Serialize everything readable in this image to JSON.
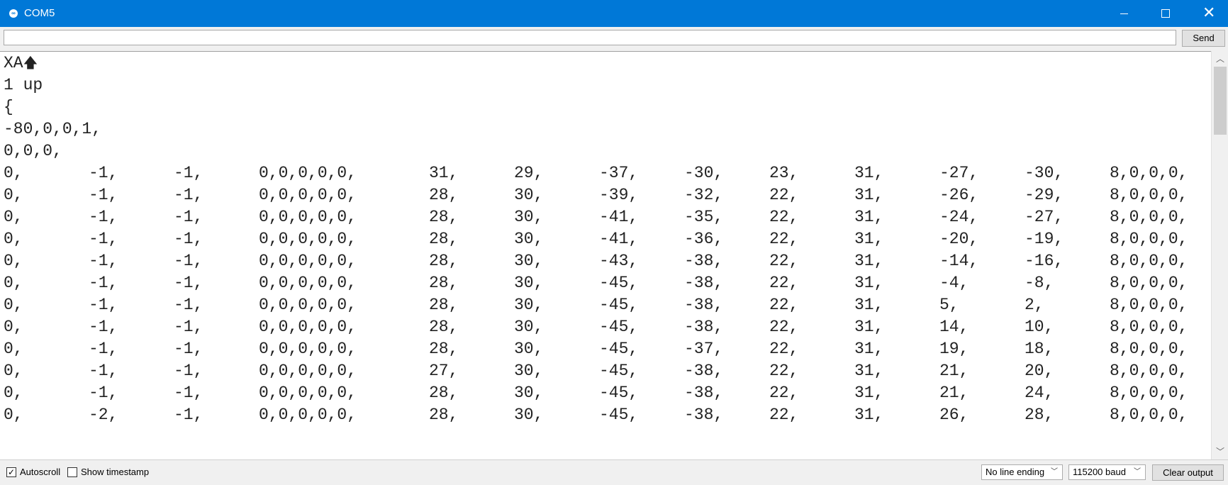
{
  "window": {
    "title": "COM5",
    "icon": "arduino-icon"
  },
  "sendbar": {
    "input_value": "",
    "send_label": "Send"
  },
  "output": {
    "header_lines": [
      "XA",
      "1 up",
      "{",
      "-80,0,0,1,",
      "0,0,0,"
    ],
    "rows": [
      [
        "0,",
        "-1,",
        "-1,",
        "0,0,0,0,0,",
        "31,",
        "29,",
        "-37,",
        "-30,",
        "23,",
        "31,",
        "-27,",
        "-30,",
        "8,0,0,0,"
      ],
      [
        "0,",
        "-1,",
        "-1,",
        "0,0,0,0,0,",
        "28,",
        "30,",
        "-39,",
        "-32,",
        "22,",
        "31,",
        "-26,",
        "-29,",
        "8,0,0,0,"
      ],
      [
        "0,",
        "-1,",
        "-1,",
        "0,0,0,0,0,",
        "28,",
        "30,",
        "-41,",
        "-35,",
        "22,",
        "31,",
        "-24,",
        "-27,",
        "8,0,0,0,"
      ],
      [
        "0,",
        "-1,",
        "-1,",
        "0,0,0,0,0,",
        "28,",
        "30,",
        "-41,",
        "-36,",
        "22,",
        "31,",
        "-20,",
        "-19,",
        "8,0,0,0,"
      ],
      [
        "0,",
        "-1,",
        "-1,",
        "0,0,0,0,0,",
        "28,",
        "30,",
        "-43,",
        "-38,",
        "22,",
        "31,",
        "-14,",
        "-16,",
        "8,0,0,0,"
      ],
      [
        "0,",
        "-1,",
        "-1,",
        "0,0,0,0,0,",
        "28,",
        "30,",
        "-45,",
        "-38,",
        "22,",
        "31,",
        "-4,",
        "-8,",
        "8,0,0,0,"
      ],
      [
        "0,",
        "-1,",
        "-1,",
        "0,0,0,0,0,",
        "28,",
        "30,",
        "-45,",
        "-38,",
        "22,",
        "31,",
        "5,",
        "2,",
        "8,0,0,0,"
      ],
      [
        "0,",
        "-1,",
        "-1,",
        "0,0,0,0,0,",
        "28,",
        "30,",
        "-45,",
        "-38,",
        "22,",
        "31,",
        "14,",
        "10,",
        "8,0,0,0,"
      ],
      [
        "0,",
        "-1,",
        "-1,",
        "0,0,0,0,0,",
        "28,",
        "30,",
        "-45,",
        "-37,",
        "22,",
        "31,",
        "19,",
        "18,",
        "8,0,0,0,"
      ],
      [
        "0,",
        "-1,",
        "-1,",
        "0,0,0,0,0,",
        "27,",
        "30,",
        "-45,",
        "-38,",
        "22,",
        "31,",
        "21,",
        "20,",
        "8,0,0,0,"
      ],
      [
        "0,",
        "-1,",
        "-1,",
        "0,0,0,0,0,",
        "28,",
        "30,",
        "-45,",
        "-38,",
        "22,",
        "31,",
        "21,",
        "24,",
        "8,0,0,0,"
      ],
      [
        "0,",
        "-2,",
        "-1,",
        "0,0,0,0,0,",
        "28,",
        "30,",
        "-45,",
        "-38,",
        "22,",
        "31,",
        "26,",
        "28,",
        "8,0,0,0,"
      ]
    ]
  },
  "bottombar": {
    "autoscroll_label": "Autoscroll",
    "autoscroll_checked": true,
    "timestamp_label": "Show timestamp",
    "timestamp_checked": false,
    "line_ending": "No line ending",
    "baud": "115200 baud",
    "clear_label": "Clear output"
  },
  "colors": {
    "titlebar": "#0078d7",
    "text": "#222222"
  }
}
